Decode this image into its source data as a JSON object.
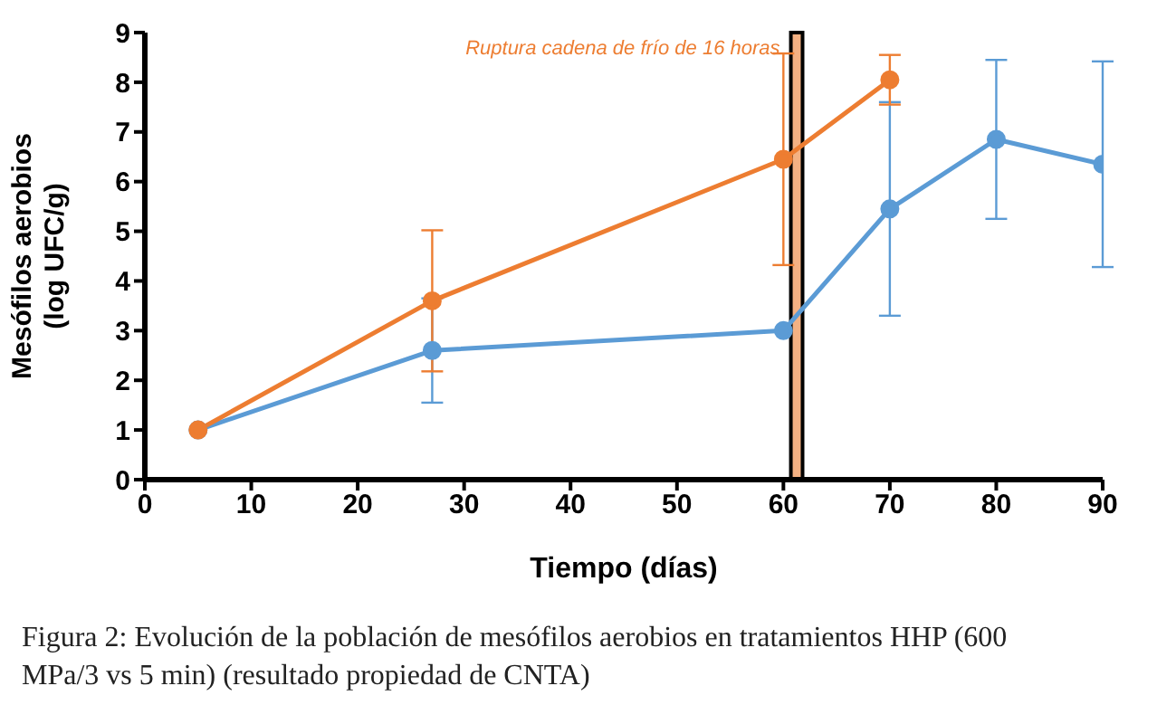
{
  "chart_data": {
    "type": "line",
    "xlabel": "Tiempo (días)",
    "ylabel": "Mesófilos aerobios\n(log UFC/g)",
    "xlim": [
      0,
      90
    ],
    "xticks": [
      0,
      10,
      20,
      30,
      40,
      50,
      60,
      70,
      80,
      90
    ],
    "ylim": [
      0,
      9
    ],
    "yticks": [
      0,
      1,
      2,
      3,
      4,
      5,
      6,
      7,
      8,
      9
    ],
    "grid": false,
    "marker": "circle",
    "line_style": "solid",
    "series": [
      {
        "color": "#5b9bd5",
        "x": [
          5,
          27,
          60,
          70,
          80,
          90
        ],
        "values": [
          1,
          2.6,
          3.0,
          5.45,
          6.85,
          6.35
        ],
        "errors": [
          null,
          1.05,
          null,
          2.15,
          1.6,
          2.07
        ]
      },
      {
        "color": "#ed7d31",
        "x": [
          5,
          27,
          60,
          70
        ],
        "values": [
          1,
          3.6,
          6.45,
          8.05
        ],
        "errors": [
          null,
          1.42,
          2.13,
          0.5
        ]
      }
    ],
    "bands": [
      {
        "axis": "x",
        "from": 60.7,
        "to": 61.8,
        "label": "Ruptura cadena de frío de 16 horas",
        "color": "#f4b183"
      }
    ],
    "annotations": [
      "Figura 2: Evolución de la población de mesófilos aerobios en tratamientos HHP (600 MPa/3 vs 5 min) (resultado propiedad de CNTA)"
    ]
  }
}
